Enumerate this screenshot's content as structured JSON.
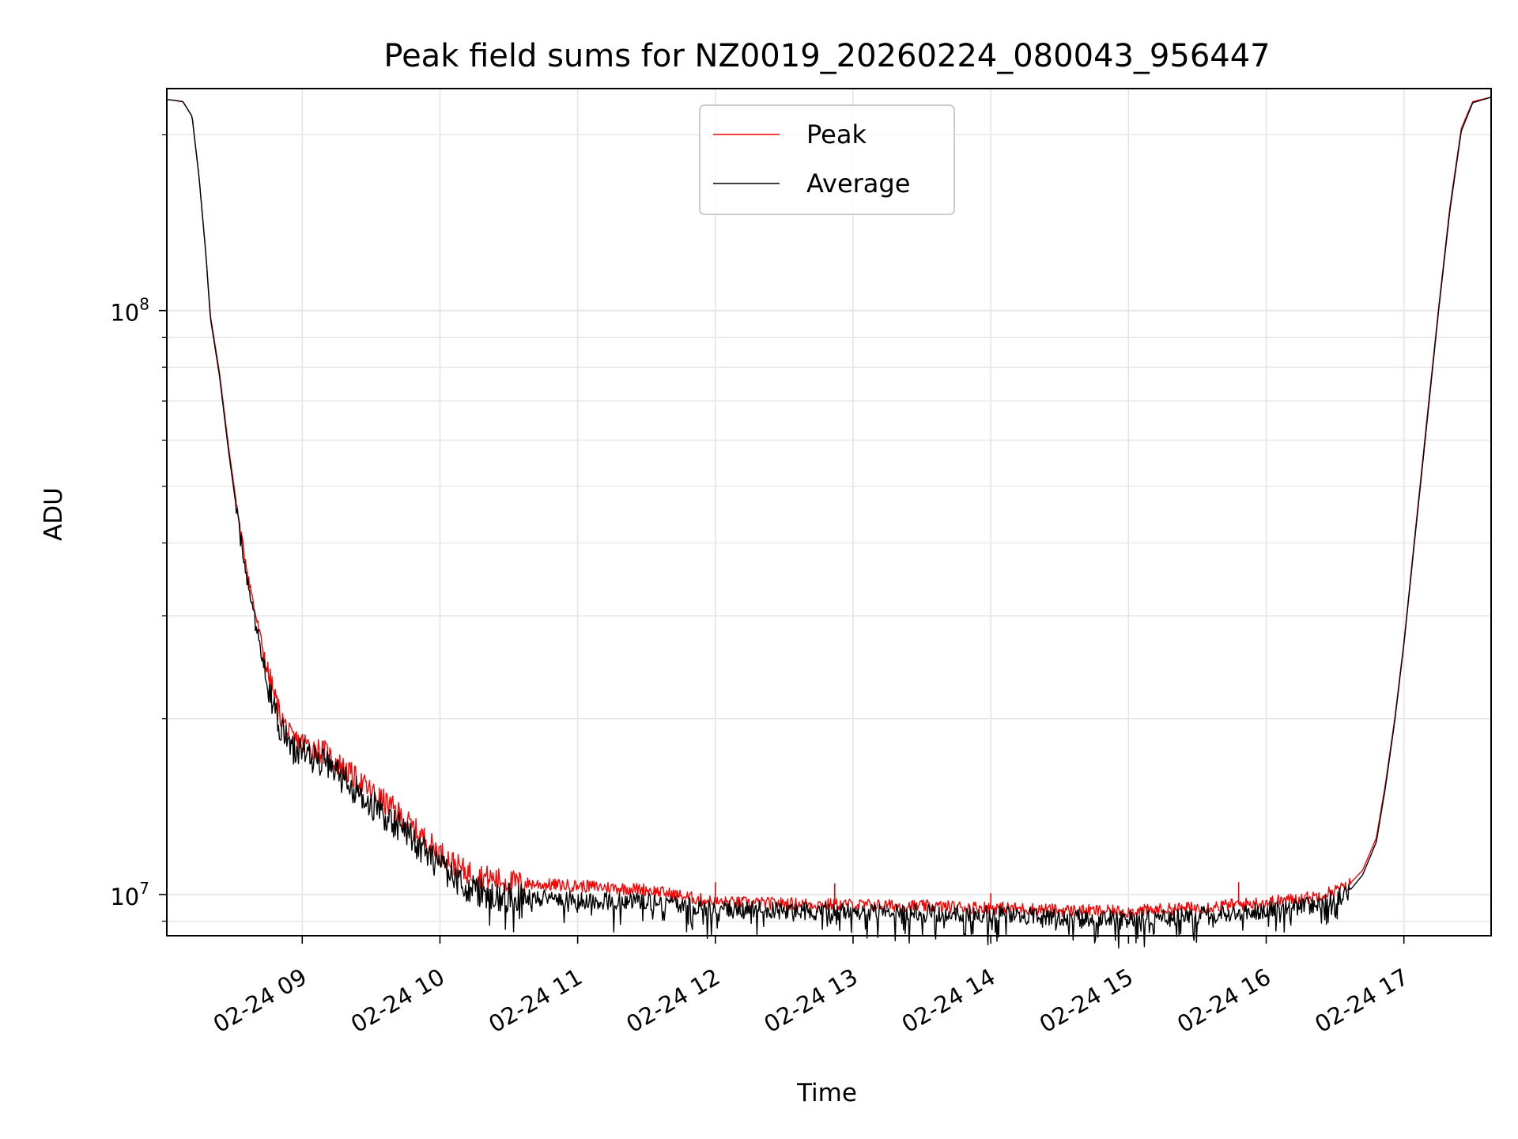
{
  "chart_data": {
    "type": "line",
    "title": "Peak field sums for NZ0019_20260224_080043_956447",
    "xlabel": "Time",
    "ylabel": "ADU",
    "y_scale": "log",
    "ylim": [
      8500000,
      240000000
    ],
    "xlim": [
      "2026-02-24 08:01",
      "2026-02-24 17:38"
    ],
    "x_ticks": [
      "2026-02-24 09:00",
      "2026-02-24 10:00",
      "2026-02-24 11:00",
      "2026-02-24 12:00",
      "2026-02-24 13:00",
      "2026-02-24 14:00",
      "2026-02-24 15:00",
      "2026-02-24 16:00",
      "2026-02-24 17:00"
    ],
    "x_tick_labels": [
      "02-24 09",
      "02-24 10",
      "02-24 11",
      "02-24 12",
      "02-24 13",
      "02-24 14",
      "02-24 15",
      "02-24 16",
      "02-24 17"
    ],
    "y_major_ticks": [
      10000000,
      100000000
    ],
    "y_major_tick_labels": [
      {
        "base": "10",
        "exp": "7"
      },
      {
        "base": "10",
        "exp": "8"
      }
    ],
    "grid": true,
    "legend_position": "top-center",
    "series": [
      {
        "name": "Peak",
        "color": "#ff0000",
        "x": [
          "2026-02-24 08:01",
          "2026-02-24 08:08",
          "2026-02-24 08:12",
          "2026-02-24 08:15",
          "2026-02-24 08:18",
          "2026-02-24 08:20",
          "2026-02-24 08:24",
          "2026-02-24 08:28",
          "2026-02-24 08:33",
          "2026-02-24 08:39",
          "2026-02-24 08:45",
          "2026-02-24 08:50",
          "2026-02-24 08:55",
          "2026-02-24 09:00",
          "2026-02-24 09:10",
          "2026-02-24 09:20",
          "2026-02-24 09:30",
          "2026-02-24 09:40",
          "2026-02-24 09:50",
          "2026-02-24 10:00",
          "2026-02-24 10:10",
          "2026-02-24 10:20",
          "2026-02-24 10:30",
          "2026-02-24 10:45",
          "2026-02-24 11:00",
          "2026-02-24 11:30",
          "2026-02-24 12:00",
          "2026-02-24 12:30",
          "2026-02-24 13:00",
          "2026-02-24 13:30",
          "2026-02-24 14:00",
          "2026-02-24 14:30",
          "2026-02-24 15:00",
          "2026-02-24 15:30",
          "2026-02-24 16:00",
          "2026-02-24 16:20",
          "2026-02-24 16:35",
          "2026-02-24 16:42",
          "2026-02-24 16:48",
          "2026-02-24 16:52",
          "2026-02-24 16:56",
          "2026-02-24 17:00",
          "2026-02-24 17:05",
          "2026-02-24 17:10",
          "2026-02-24 17:15",
          "2026-02-24 17:20",
          "2026-02-24 17:25",
          "2026-02-24 17:30",
          "2026-02-24 17:38"
        ],
        "values": [
          230000000,
          228000000,
          215000000,
          170000000,
          125000000,
          98000000,
          78000000,
          58000000,
          42000000,
          31000000,
          24000000,
          20500000,
          18500000,
          18200000,
          17500000,
          16200000,
          15000000,
          14000000,
          12800000,
          11800000,
          11000000,
          10700000,
          10500000,
          10400000,
          10350000,
          10200000,
          9700000,
          9650000,
          9600000,
          9550000,
          9500000,
          9400000,
          9350000,
          9500000,
          9700000,
          9900000,
          10300000,
          11000000,
          12500000,
          15500000,
          20000000,
          27000000,
          42000000,
          65000000,
          100000000,
          150000000,
          205000000,
          228000000,
          232000000
        ],
        "spikes": [
          {
            "x": "2026-02-24 12:00",
            "value": 10500000
          },
          {
            "x": "2026-02-24 12:52",
            "value": 10450000
          },
          {
            "x": "2026-02-24 14:00",
            "value": 10050000
          },
          {
            "x": "2026-02-24 15:48",
            "value": 10500000
          }
        ]
      },
      {
        "name": "Average",
        "color": "#000000",
        "x": [
          "2026-02-24 08:01",
          "2026-02-24 08:08",
          "2026-02-24 08:12",
          "2026-02-24 08:15",
          "2026-02-24 08:18",
          "2026-02-24 08:20",
          "2026-02-24 08:24",
          "2026-02-24 08:28",
          "2026-02-24 08:33",
          "2026-02-24 08:39",
          "2026-02-24 08:45",
          "2026-02-24 08:50",
          "2026-02-24 08:55",
          "2026-02-24 09:00",
          "2026-02-24 09:10",
          "2026-02-24 09:20",
          "2026-02-24 09:30",
          "2026-02-24 09:40",
          "2026-02-24 09:50",
          "2026-02-24 10:00",
          "2026-02-24 10:10",
          "2026-02-24 10:20",
          "2026-02-24 10:30",
          "2026-02-24 10:45",
          "2026-02-24 11:00",
          "2026-02-24 11:30",
          "2026-02-24 12:00",
          "2026-02-24 12:30",
          "2026-02-24 13:00",
          "2026-02-24 13:30",
          "2026-02-24 14:00",
          "2026-02-24 14:30",
          "2026-02-24 15:00",
          "2026-02-24 15:30",
          "2026-02-24 16:00",
          "2026-02-24 16:20",
          "2026-02-24 16:35",
          "2026-02-24 16:42",
          "2026-02-24 16:48",
          "2026-02-24 16:52",
          "2026-02-24 16:56",
          "2026-02-24 17:00",
          "2026-02-24 17:05",
          "2026-02-24 17:10",
          "2026-02-24 17:15",
          "2026-02-24 17:20",
          "2026-02-24 17:25",
          "2026-02-24 17:30",
          "2026-02-24 17:38"
        ],
        "values": [
          230000000,
          228000000,
          215000000,
          170000000,
          125000000,
          97000000,
          77000000,
          57000000,
          41000000,
          30000000,
          23000000,
          19500000,
          17800000,
          17500000,
          16800000,
          15500000,
          14300000,
          13300000,
          12200000,
          11200000,
          10400000,
          10000000,
          9900000,
          9850000,
          9800000,
          9700000,
          9500000,
          9400000,
          9350000,
          9300000,
          9250000,
          9150000,
          9100000,
          9200000,
          9400000,
          9600000,
          10000000,
          10800000,
          12300000,
          15300000,
          19800000,
          26800000,
          41500000,
          64000000,
          99000000,
          148000000,
          203000000,
          227000000,
          232000000
        ]
      }
    ]
  }
}
